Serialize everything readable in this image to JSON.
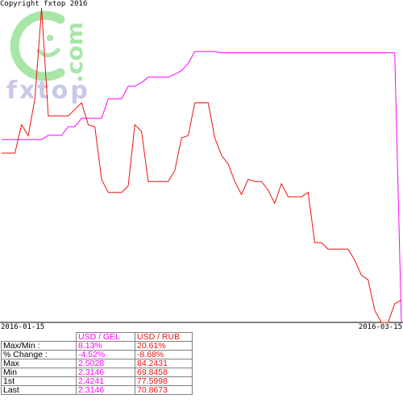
{
  "copyright": "Copyright fxtop 2016",
  "watermark": {
    "logo_text": "fxtop",
    "side_text": ".com"
  },
  "colors": {
    "gel": "#ff00ff",
    "rub": "#ee1111",
    "watermark": "#a8e6a8",
    "watermark_text": "#c8c8e8"
  },
  "chart_data": {
    "type": "line",
    "x": [
      "2016-01-15",
      "2016-01-16",
      "2016-01-17",
      "2016-01-18",
      "2016-01-19",
      "2016-01-20",
      "2016-01-21",
      "2016-01-22",
      "2016-01-23",
      "2016-01-24",
      "2016-01-25",
      "2016-01-26",
      "2016-01-27",
      "2016-01-28",
      "2016-01-29",
      "2016-01-30",
      "2016-01-31",
      "2016-02-01",
      "2016-02-02",
      "2016-02-03",
      "2016-02-04",
      "2016-02-05",
      "2016-02-06",
      "2016-02-07",
      "2016-02-08",
      "2016-02-09",
      "2016-02-10",
      "2016-02-11",
      "2016-02-12",
      "2016-02-13",
      "2016-02-14",
      "2016-02-15",
      "2016-02-16",
      "2016-02-17",
      "2016-02-18",
      "2016-02-19",
      "2016-02-20",
      "2016-02-21",
      "2016-02-22",
      "2016-02-23",
      "2016-02-24",
      "2016-02-25",
      "2016-02-26",
      "2016-02-27",
      "2016-02-28",
      "2016-02-29",
      "2016-03-01",
      "2016-03-02",
      "2016-03-03",
      "2016-03-04",
      "2016-03-05",
      "2016-03-06",
      "2016-03-07",
      "2016-03-08",
      "2016-03-09",
      "2016-03-10",
      "2016-03-11",
      "2016-03-12",
      "2016-03-13",
      "2016-03-14",
      "2016-03-15"
    ],
    "x_tick_labels": [
      "2016-01-15",
      "2016-03-15"
    ],
    "series": [
      {
        "name": "USD / GEL",
        "color": "#ff00ff",
        "ylim": [
          2.3146,
          2.5028
        ],
        "values": [
          2.4241,
          2.4241,
          2.4241,
          2.4241,
          2.4241,
          2.4241,
          2.4241,
          2.4266,
          2.4266,
          2.4266,
          2.4318,
          2.4318,
          2.4368,
          2.4368,
          2.4368,
          2.4368,
          2.4484,
          2.4484,
          2.4484,
          2.456,
          2.456,
          2.4582,
          2.4614,
          2.4614,
          2.4614,
          2.4614,
          2.4632,
          2.4653,
          2.4696,
          2.4768,
          2.4768,
          2.4768,
          2.4768,
          2.476,
          2.476,
          2.476,
          2.476,
          2.476,
          2.476,
          2.476,
          2.476,
          2.476,
          2.476,
          2.476,
          2.476,
          2.476,
          2.476,
          2.476,
          2.476,
          2.476,
          2.476,
          2.476,
          2.476,
          2.476,
          2.476,
          2.476,
          2.476,
          2.476,
          2.476,
          2.476,
          2.3146
        ]
      },
      {
        "name": "USD / RUB",
        "color": "#ee1111",
        "ylim": [
          69.8458,
          84.2431
        ],
        "values": [
          77.5998,
          77.5998,
          77.5998,
          78.9,
          78.4,
          80.1,
          84.2431,
          79.3,
          79.3,
          79.3,
          79.3,
          79.6,
          79.9,
          78.9,
          78.8,
          76.4,
          75.8,
          75.8,
          75.8,
          76.1,
          78.9,
          78.6,
          76.3,
          76.3,
          76.3,
          76.3,
          76.8,
          78.3,
          78.4,
          79.9,
          79.9,
          79.9,
          78.3,
          77.5,
          77.1,
          76.3,
          75.7,
          76.4,
          76.3,
          76.3,
          75.9,
          75.3,
          76.2,
          75.6,
          75.6,
          75.6,
          75.8,
          73.5,
          73.5,
          73.2,
          73.2,
          73.2,
          73.2,
          72.7,
          72.0,
          71.8,
          70.4,
          69.8458,
          69.8458,
          70.7,
          70.8673
        ]
      }
    ],
    "grid": false,
    "ylim": [
      69.8458,
      84.2431
    ]
  },
  "stats_table": {
    "headers": [
      "USD / GEL",
      "USD / RUB"
    ],
    "rows": [
      {
        "label": "Max/Min :",
        "values": [
          "8.13%",
          "20.61%"
        ]
      },
      {
        "label": "% Change :",
        "values": [
          "-4.52%",
          "-8.68%"
        ]
      },
      {
        "label": "Max",
        "values": [
          "2.5028",
          "84.2431"
        ]
      },
      {
        "label": "Min",
        "values": [
          "2.3146",
          "69.8458"
        ]
      },
      {
        "label": "1st",
        "values": [
          "2.4241",
          "77.5998"
        ]
      },
      {
        "label": "Last",
        "values": [
          "2.3146",
          "70.8673"
        ]
      }
    ]
  }
}
